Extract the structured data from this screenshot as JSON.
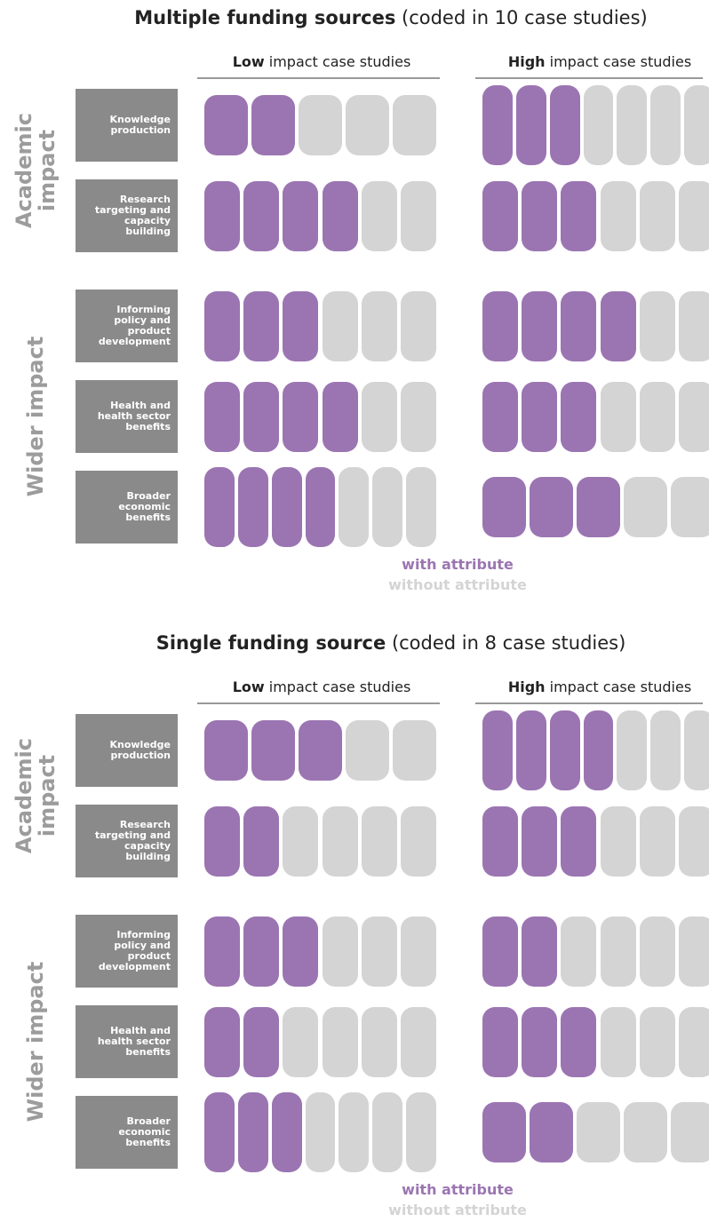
{
  "chart_data": [
    {
      "type": "unit",
      "title": "Multiple funding sources",
      "subtitle": "(coded in 10 case studies)",
      "columns": [
        {
          "name": "Low",
          "label": "impact case studies"
        },
        {
          "name": "High",
          "label": "impact case studies"
        }
      ],
      "colors": {
        "with": "#9b75b2",
        "without": "#d4d4d4"
      },
      "groups": [
        {
          "label": "Academic impact",
          "rows": [
            {
              "label": "Knowledge production",
              "with": [
                2,
                3
              ],
              "total": [
                5,
                7
              ]
            },
            {
              "label": "Research targeting and capacity building",
              "with": [
                4,
                3
              ],
              "total": [
                6,
                6
              ]
            }
          ]
        },
        {
          "label": "Wider impact",
          "rows": [
            {
              "label": "Informing policy and product development",
              "with": [
                3,
                4
              ],
              "total": [
                6,
                6
              ]
            },
            {
              "label": "Health and health sector benefits",
              "with": [
                4,
                3
              ],
              "total": [
                6,
                6
              ]
            },
            {
              "label": "Broader economic benefits",
              "with": [
                4,
                3
              ],
              "total": [
                7,
                5
              ]
            }
          ]
        }
      ],
      "legend": [
        "with attribute",
        "without attribute"
      ]
    },
    {
      "type": "unit",
      "title": "Single funding source",
      "subtitle": "(coded in 8 case studies)",
      "columns": [
        {
          "name": "Low",
          "label": "impact case studies"
        },
        {
          "name": "High",
          "label": "impact case studies"
        }
      ],
      "colors": {
        "with": "#9b75b2",
        "without": "#d4d4d4"
      },
      "groups": [
        {
          "label": "Academic impact",
          "rows": [
            {
              "label": "Knowledge production",
              "with": [
                3,
                4
              ],
              "total": [
                5,
                7
              ]
            },
            {
              "label": "Research targeting and capacity building",
              "with": [
                2,
                3
              ],
              "total": [
                6,
                6
              ]
            }
          ]
        },
        {
          "label": "Wider impact",
          "rows": [
            {
              "label": "Informing policy and product development",
              "with": [
                3,
                2
              ],
              "total": [
                6,
                6
              ]
            },
            {
              "label": "Health and health sector benefits",
              "with": [
                2,
                3
              ],
              "total": [
                6,
                6
              ]
            },
            {
              "label": "Broader economic benefits",
              "with": [
                3,
                2
              ],
              "total": [
                7,
                5
              ]
            }
          ]
        }
      ],
      "legend": [
        "with attribute",
        "without attribute"
      ]
    }
  ]
}
